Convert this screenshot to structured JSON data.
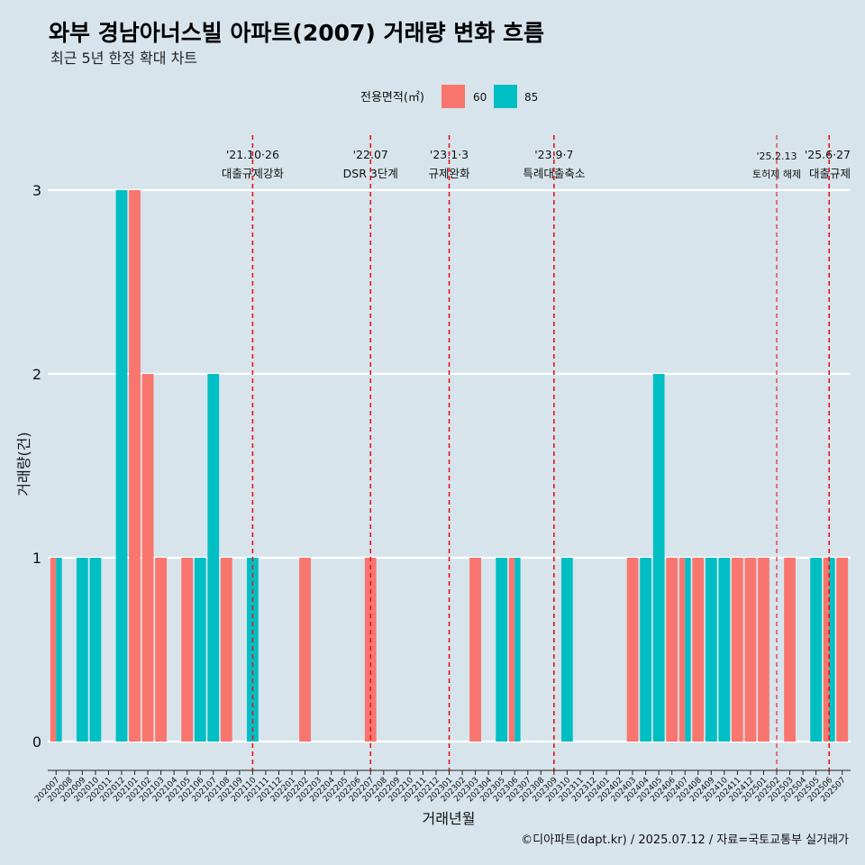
{
  "chart_data": {
    "type": "bar",
    "title": "와부 경남아너스빌 아파트(2007) 거래량 변화 흐름",
    "subtitle": "최근 5년 한정 확대 차트",
    "xlabel": "거래년월",
    "ylabel": "거래량(건)",
    "ylim": [
      0,
      3
    ],
    "yticks": [
      "0",
      "1",
      "2",
      "3"
    ],
    "grid": "horizontal",
    "legend": {
      "title": "전용면적(㎡)",
      "placement": "top",
      "entries": [
        {
          "label": "60",
          "color": "#F8766D"
        },
        {
          "label": "85",
          "color": "#00BFC4"
        }
      ]
    },
    "categories": [
      "202007",
      "202008",
      "202009",
      "202010",
      "202011",
      "202012",
      "202101",
      "202102",
      "202103",
      "202104",
      "202105",
      "202106",
      "202107",
      "202108",
      "202109",
      "202110",
      "202111",
      "202112",
      "202201",
      "202202",
      "202203",
      "202204",
      "202205",
      "202206",
      "202207",
      "202208",
      "202209",
      "202210",
      "202211",
      "202212",
      "202301",
      "202302",
      "202303",
      "202304",
      "202305",
      "202306",
      "202307",
      "202308",
      "202309",
      "202310",
      "202311",
      "202312",
      "202401",
      "202402",
      "202403",
      "202404",
      "202405",
      "202406",
      "202407",
      "202408",
      "202409",
      "202410",
      "202411",
      "202412",
      "202501",
      "202502",
      "202503",
      "202504",
      "202505",
      "202506",
      "202507"
    ],
    "series": [
      {
        "name": "60",
        "color": "#F8766D",
        "values": [
          1,
          0,
          0,
          0,
          0,
          0,
          3,
          2,
          1,
          0,
          1,
          0,
          0,
          1,
          0,
          0,
          0,
          0,
          0,
          1,
          0,
          0,
          0,
          0,
          1,
          0,
          0,
          0,
          0,
          0,
          0,
          0,
          1,
          0,
          0,
          1,
          0,
          0,
          0,
          0,
          0,
          0,
          0,
          0,
          1,
          0,
          0,
          1,
          1,
          1,
          0,
          0,
          1,
          1,
          1,
          0,
          1,
          0,
          0,
          1,
          1
        ]
      },
      {
        "name": "85",
        "color": "#00BFC4",
        "values": [
          1,
          0,
          1,
          1,
          0,
          3,
          0,
          0,
          0,
          0,
          0,
          1,
          2,
          0,
          0,
          1,
          0,
          0,
          0,
          0,
          0,
          0,
          0,
          0,
          0,
          0,
          0,
          0,
          0,
          0,
          0,
          0,
          0,
          0,
          1,
          1,
          0,
          0,
          0,
          1,
          0,
          0,
          0,
          0,
          0,
          1,
          2,
          0,
          1,
          0,
          1,
          1,
          0,
          0,
          0,
          0,
          0,
          0,
          1,
          1,
          0
        ]
      }
    ],
    "annotations": [
      {
        "x": "202110",
        "line1": "'21.10·26",
        "line2": "대출규제강화",
        "size": "normal"
      },
      {
        "x": "202207",
        "line1": "'22.07",
        "line2": "DSR 3단계",
        "size": "normal"
      },
      {
        "x": "202301",
        "line1": "'23.1·3",
        "line2": "규제완화",
        "size": "normal"
      },
      {
        "x": "202309",
        "line1": "'23.9·7",
        "line2": "특례대출축소",
        "size": "normal"
      },
      {
        "x": "202502",
        "line1": "'25.2.13",
        "line2": "토허제 해제",
        "size": "small"
      },
      {
        "x": "202506",
        "line1": "'25.6·27",
        "line2": "대출규제",
        "size": "normal"
      }
    ],
    "caption": "©디아파트(dapt.kr) / 2025.07.12 / 자료=국토교통부 실거래가"
  }
}
